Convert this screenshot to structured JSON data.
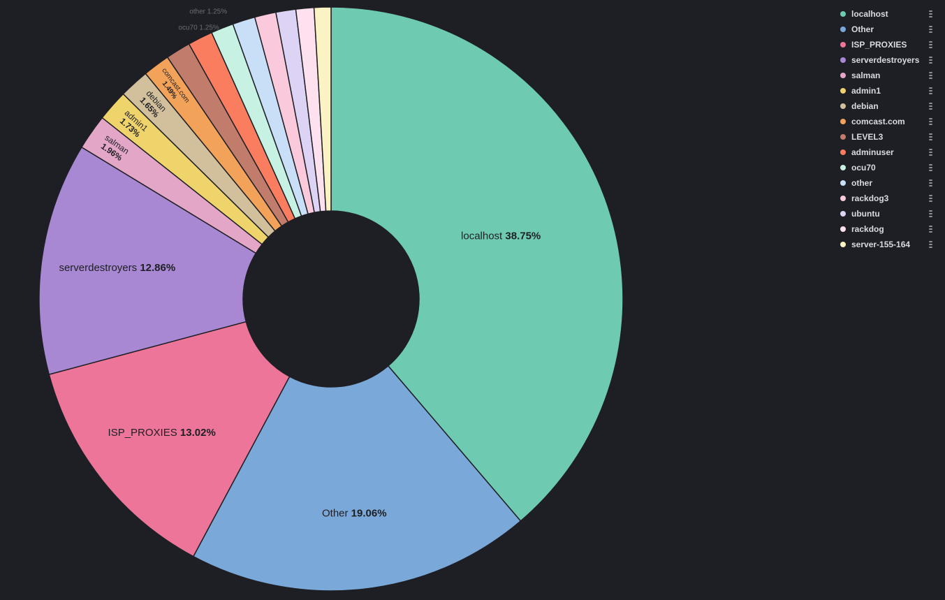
{
  "chart_data": {
    "type": "pie",
    "donut": true,
    "slices": [
      {
        "label": "localhost",
        "value": 38.75,
        "display": "38.75%",
        "color": "#6ecbb2"
      },
      {
        "label": "Other",
        "value": 19.06,
        "display": "19.06%",
        "color": "#7aa9d9"
      },
      {
        "label": "ISP_PROXIES",
        "value": 13.02,
        "display": "13.02%",
        "color": "#ec7599"
      },
      {
        "label": "serverdestroyers",
        "value": 12.86,
        "display": "12.86%",
        "color": "#a888d3"
      },
      {
        "label": "salman",
        "value": 1.96,
        "display": "1.96%",
        "color": "#e3a6c7"
      },
      {
        "label": "admin1",
        "value": 1.73,
        "display": "1.73%",
        "color": "#efd46c"
      },
      {
        "label": "debian",
        "value": 1.65,
        "display": "1.65%",
        "color": "#d2bf9c"
      },
      {
        "label": "comcast.com",
        "value": 1.49,
        "display": "1.49%",
        "color": "#f3a259"
      },
      {
        "label": "LEVEL3",
        "value": 1.38,
        "display": "",
        "color": "#c27c6b"
      },
      {
        "label": "adminuser",
        "value": 1.38,
        "display": "",
        "color": "#fb7d5f"
      },
      {
        "label": "ocu70",
        "value": 1.25,
        "display": "1.25%",
        "color": "#c6f1e3"
      },
      {
        "label": "other",
        "value": 1.25,
        "display": "1.25%",
        "color": "#c8dff7"
      },
      {
        "label": "rackdog3",
        "value": 1.18,
        "display": "1.18%",
        "color": "#fac9dc"
      },
      {
        "label": "ubuntu",
        "value": 1.1,
        "display": "",
        "color": "#ddd3f4"
      },
      {
        "label": "rackdog",
        "value": 1.0,
        "display": "",
        "color": "#fde1ef"
      },
      {
        "label": "server-155-164",
        "value": 0.93,
        "display": "",
        "color": "#fcf3c5"
      }
    ],
    "legend_position": "top-right"
  },
  "legend_items": [
    {
      "label": "localhost",
      "color": "#6ecbb2"
    },
    {
      "label": "Other",
      "color": "#7aa9d9"
    },
    {
      "label": "ISP_PROXIES",
      "color": "#ec7599"
    },
    {
      "label": "serverdestroyers",
      "color": "#a888d3"
    },
    {
      "label": "salman",
      "color": "#e3a6c7"
    },
    {
      "label": "admin1",
      "color": "#efd46c"
    },
    {
      "label": "debian",
      "color": "#d2bf9c"
    },
    {
      "label": "comcast.com",
      "color": "#f3a259"
    },
    {
      "label": "LEVEL3",
      "color": "#c27c6b"
    },
    {
      "label": "adminuser",
      "color": "#fb7d5f"
    },
    {
      "label": "ocu70",
      "color": "#c6f1e3"
    },
    {
      "label": "other",
      "color": "#c8dff7"
    },
    {
      "label": "rackdog3",
      "color": "#fac9dc"
    },
    {
      "label": "ubuntu",
      "color": "#ddd3f4"
    },
    {
      "label": "rackdog",
      "color": "#fde1ef"
    },
    {
      "label": "server-155-164",
      "color": "#fcf3c5"
    }
  ],
  "colors": {
    "background": "#1e1f24",
    "slice_border": "#1e1f24",
    "label_text": "#1e1f24",
    "outside_label_text": "#6b6e76",
    "legend_text": "#d9dbe0"
  },
  "icons": {
    "legend_menu": "vertical-dots-menu-icon",
    "legend_marker": "circle-marker-icon"
  }
}
